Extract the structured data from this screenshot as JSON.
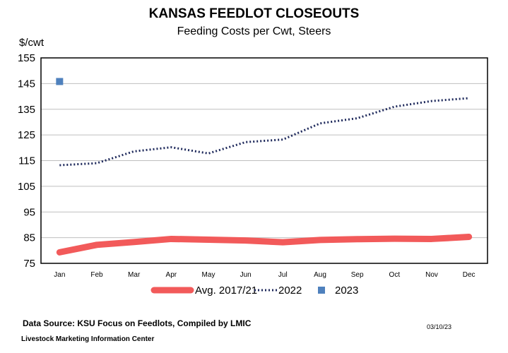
{
  "chart_data": {
    "type": "line",
    "title": "KANSAS FEEDLOT CLOSEOUTS",
    "subtitle": "Feeding Costs per Cwt, Steers",
    "ylabel": "$/cwt",
    "xlabel": "",
    "ylim": [
      75,
      155
    ],
    "yticks": [
      75,
      85,
      95,
      105,
      115,
      125,
      135,
      145,
      155
    ],
    "categories": [
      "Jan",
      "Feb",
      "Mar",
      "Apr",
      "May",
      "Jun",
      "Jul",
      "Aug",
      "Sep",
      "Oct",
      "Nov",
      "Dec"
    ],
    "series": [
      {
        "name": "Avg. 2017/21",
        "style": "thick-solid",
        "color": "#f25a5a",
        "values": [
          79.3,
          82.2,
          83.3,
          84.5,
          84.2,
          83.9,
          83.2,
          84.1,
          84.4,
          84.6,
          84.5,
          85.3
        ]
      },
      {
        "name": "2022",
        "style": "dotted",
        "color": "#1f2a5c",
        "values": [
          113.2,
          114.0,
          118.6,
          120.2,
          117.8,
          122.2,
          123.2,
          129.5,
          131.5,
          136.0,
          138.2,
          139.3
        ]
      },
      {
        "name": "2023",
        "style": "marker",
        "color": "#4f81bd",
        "values": [
          145.8,
          null,
          null,
          null,
          null,
          null,
          null,
          null,
          null,
          null,
          null,
          null
        ]
      }
    ],
    "grid": true,
    "legend": "bottom"
  },
  "footer": {
    "source": "Data Source:  KSU Focus on Feedlots, Compiled by LMIC",
    "date": "03/10/23",
    "org": "Livestock Marketing Information Center"
  }
}
